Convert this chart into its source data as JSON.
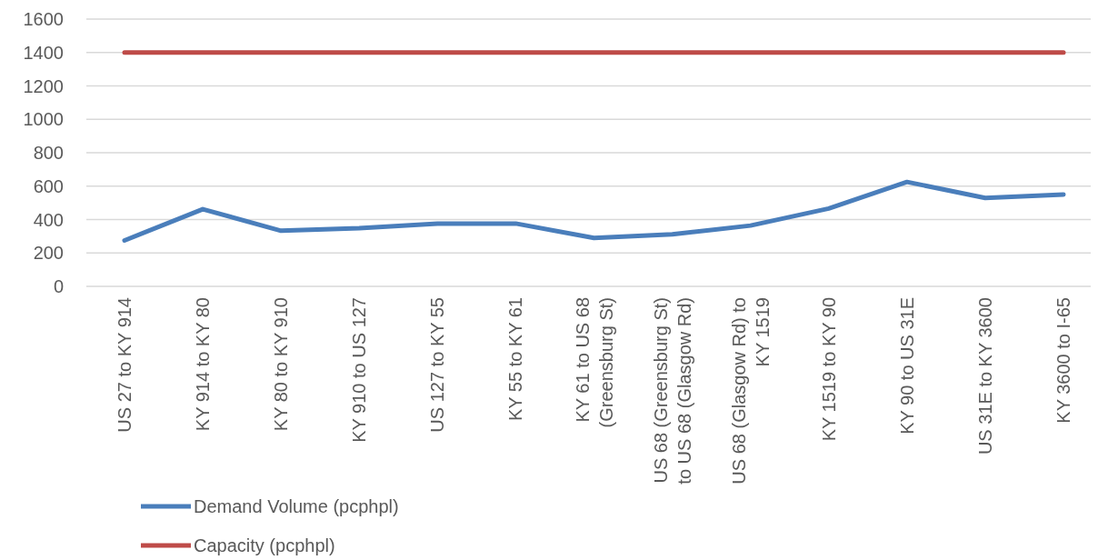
{
  "chart_data": {
    "type": "line",
    "categories": [
      "US 27 to KY 914",
      "KY 914 to KY 80",
      "KY 80 to KY 910",
      "KY 910 to US 127",
      "US 127 to KY 55",
      "KY 55 to KY 61",
      "KY 61 to US 68 (Greensburg St)",
      "US 68 (Greensburg St) to US 68 (Glasgow Rd)",
      "US 68 (Glasgow Rd) to KY 1519",
      "KY 1519 to KY 90",
      "KY 90 to US 31E",
      "US 31E to KY 3600",
      "KY 3600 to I-65"
    ],
    "series": [
      {
        "name": "Demand Volume (pcphpl)",
        "color": "#4a7ebb",
        "values": [
          275,
          462,
          333,
          348,
          376,
          376,
          290,
          311,
          364,
          466,
          625,
          529,
          550
        ]
      },
      {
        "name": "Capacity (pcphpl)",
        "color": "#be4b48",
        "values": [
          1400,
          1400,
          1400,
          1400,
          1400,
          1400,
          1400,
          1400,
          1400,
          1400,
          1400,
          1400,
          1400
        ]
      }
    ],
    "ylim": [
      0,
      1600
    ],
    "yticks": [
      0,
      200,
      400,
      600,
      800,
      1000,
      1200,
      1400,
      1600
    ],
    "grid": "y",
    "legend": "bottom",
    "marker": "none",
    "line_style": "solid"
  }
}
